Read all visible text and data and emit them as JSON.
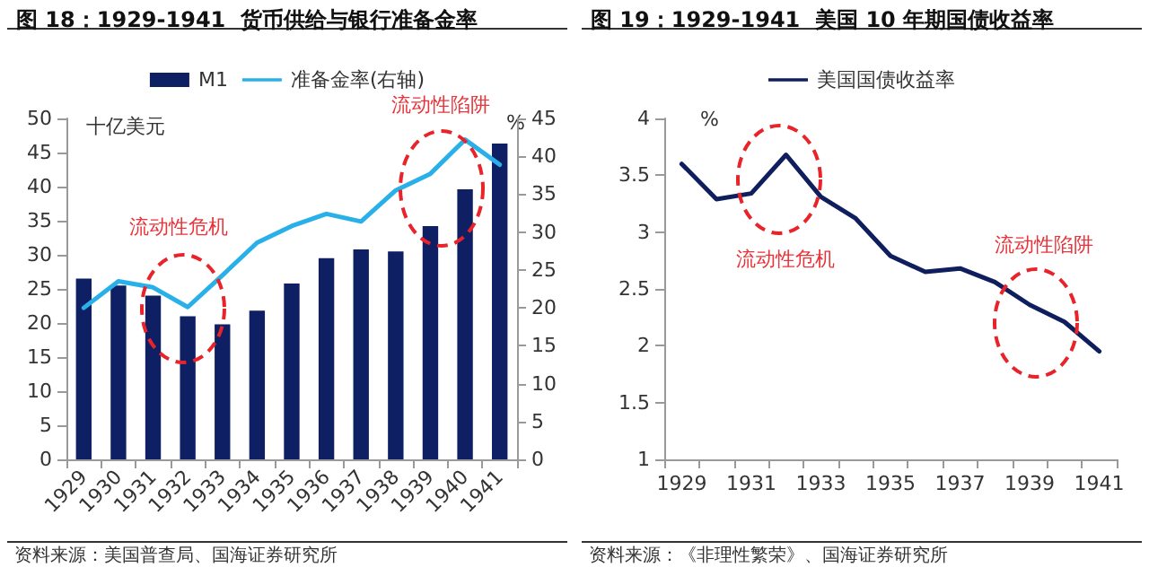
{
  "chart_data": [
    {
      "type": "bar",
      "title": "图 18：1929-1941  货币供给与银行准备金率",
      "categories": [
        "1929",
        "1930",
        "1931",
        "1932",
        "1933",
        "1934",
        "1935",
        "1936",
        "1937",
        "1938",
        "1939",
        "1940",
        "1941"
      ],
      "series": [
        {
          "name": "M1",
          "color": "#0f1f63",
          "values": [
            26.5,
            25.5,
            24,
            21,
            19.8,
            21.8,
            25.8,
            29.5,
            30.8,
            30.5,
            34.2,
            39.6,
            46.3
          ]
        },
        {
          "name": "准备金率(右轴)",
          "type": "line",
          "axis": "y2",
          "color": "#29b0e8",
          "values": [
            20,
            23.5,
            22.7,
            20.1,
            24.3,
            28.6,
            30.8,
            32.4,
            31.4,
            35.5,
            37.7,
            42.2,
            38.9
          ]
        }
      ],
      "ylim": [
        0,
        50
      ],
      "yticks": [
        0,
        5,
        10,
        15,
        20,
        25,
        30,
        35,
        40,
        45,
        50
      ],
      "y2lim": [
        0,
        45
      ],
      "y2ticks": [
        0,
        5,
        10,
        15,
        20,
        25,
        30,
        35,
        40,
        45
      ],
      "legend": "top",
      "grid": false,
      "marker": "none",
      "line_style": "solid",
      "annotations": [
        "十亿美元",
        "%",
        "流动性危机",
        "流动性陷阱",
        "资料来源：美国普查局、国海证券研究所"
      ]
    },
    {
      "type": "line",
      "title": "图 19：1929-1941  美国 10 年期国债收益率",
      "categories": [
        "1929",
        null,
        "1931",
        null,
        "1933",
        null,
        "1935",
        null,
        "1937",
        null,
        "1939",
        null,
        "1941"
      ],
      "series": [
        {
          "name": "美国国债收益率",
          "color": "#0f1f5e",
          "values": [
            3.6,
            3.29,
            3.34,
            3.68,
            3.31,
            3.12,
            2.79,
            2.65,
            2.68,
            2.56,
            2.36,
            2.21,
            1.95
          ]
        }
      ],
      "ylim": [
        1,
        4
      ],
      "yticks": [
        1,
        1.5,
        2,
        2.5,
        3,
        3.5,
        4
      ],
      "legend": "top",
      "grid": false,
      "marker": "none",
      "line_style": "solid",
      "annotations": [
        "%",
        "流动性危机",
        "流动性陷阱",
        "资料来源：《非理性繁荣》、国海证券研究所"
      ]
    }
  ]
}
